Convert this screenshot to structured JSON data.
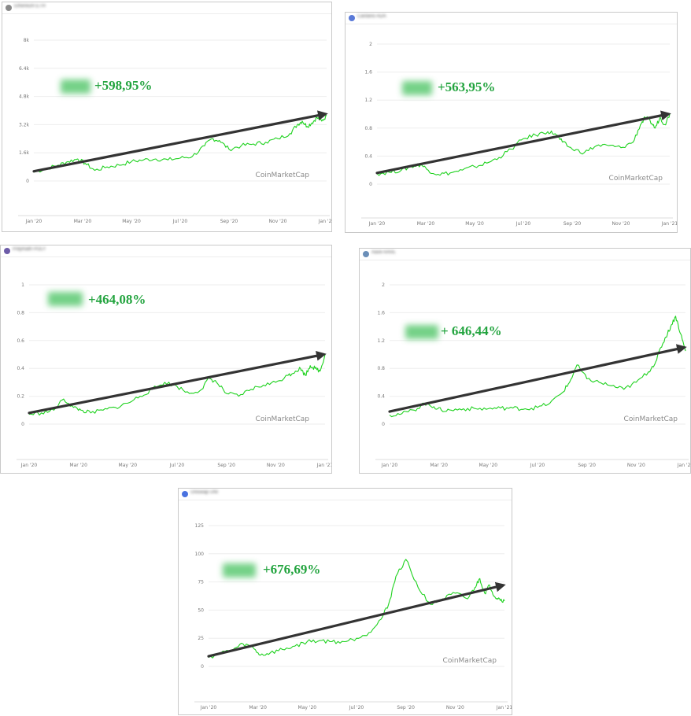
{
  "colors": {
    "line": "#1fd21f",
    "trend_arrow": "#333333",
    "percent_text": "#23a43f",
    "grid": "#eeeeee"
  },
  "panels": [
    {
      "coin_name": "Ethereum ETH",
      "percent_label": "+598,95%",
      "watermark": "CoinMarketCap"
    },
    {
      "coin_name": "Cardano ADA",
      "percent_label": "+563,95%",
      "watermark": "CoinMarketCap"
    },
    {
      "coin_name": "Polymath POLY",
      "percent_label": "+464,08%",
      "watermark": "CoinMarketCap"
    },
    {
      "coin_name": "Aave AAVE",
      "percent_label": "+ 646,44%",
      "watermark": "CoinMarketCap"
    },
    {
      "coin_name": "Uniswap UNI",
      "percent_label": "+676,69%",
      "watermark": "CoinMarketCap"
    }
  ],
  "chart_data": [
    {
      "type": "line",
      "yticks": [
        "0",
        "1.6k",
        "3.2k",
        "4.8k",
        "6.4k",
        "8k"
      ],
      "ylim": [
        0,
        8000
      ],
      "xticks": [
        "Jan '20",
        "Mar '20",
        "May '20",
        "Jul '20",
        "Sep '20",
        "Nov '20",
        "Jan '21"
      ],
      "xlim": [
        0,
        12
      ],
      "x": [
        0,
        0.5,
        1,
        1.4,
        1.8,
        2.1,
        2.5,
        3,
        3.5,
        4,
        4.5,
        5,
        5.5,
        6,
        6.5,
        7,
        7.3,
        7.6,
        8,
        8.5,
        9,
        9.5,
        10,
        10.5,
        10.8,
        11,
        11.2,
        11.4,
        11.6,
        11.8,
        12
      ],
      "series": [
        {
          "values": [
            500,
            700,
            900,
            1100,
            1250,
            1000,
            600,
            800,
            900,
            1100,
            1200,
            1250,
            1200,
            1300,
            1400,
            2000,
            2400,
            2300,
            1800,
            2000,
            2100,
            2200,
            2400,
            2700,
            3200,
            3400,
            3100,
            3300,
            3600,
            3400,
            3700
          ]
        }
      ],
      "trend": {
        "from": [
          0,
          550
        ],
        "to": [
          12,
          3800
        ]
      }
    },
    {
      "type": "line",
      "yticks": [
        "0",
        "0.4",
        "0.8",
        "1.2",
        "1.6",
        "2"
      ],
      "ylim": [
        0,
        2
      ],
      "xticks": [
        "Jan '20",
        "Mar '20",
        "May '20",
        "Jul '20",
        "Sep '20",
        "Nov '20",
        "Jan '21"
      ],
      "xlim": [
        0,
        12
      ],
      "x": [
        0,
        0.5,
        1,
        1.4,
        1.8,
        2.1,
        2.5,
        3,
        3.5,
        4,
        4.5,
        5,
        5.5,
        6,
        6.5,
        7,
        7.3,
        7.6,
        8,
        8.5,
        9,
        9.5,
        10,
        10.5,
        10.8,
        11,
        11.2,
        11.4,
        11.6,
        11.8,
        12
      ],
      "series": [
        {
          "values": [
            0.15,
            0.17,
            0.2,
            0.25,
            0.28,
            0.2,
            0.14,
            0.16,
            0.2,
            0.25,
            0.3,
            0.38,
            0.5,
            0.65,
            0.7,
            0.75,
            0.72,
            0.6,
            0.5,
            0.45,
            0.55,
            0.55,
            0.52,
            0.6,
            0.85,
            0.95,
            0.9,
            0.8,
            0.95,
            0.85,
            1.0
          ]
        }
      ],
      "trend": {
        "from": [
          0,
          0.16
        ],
        "to": [
          12,
          1.0
        ]
      }
    },
    {
      "type": "line",
      "yticks": [
        "0",
        "0.2",
        "0.4",
        "0.6",
        "0.8",
        "1"
      ],
      "ylim": [
        0,
        1
      ],
      "xticks": [
        "Jan '20",
        "Mar '20",
        "May '20",
        "Jul '20",
        "Sep '20",
        "Nov '20",
        "Jan '21"
      ],
      "xlim": [
        0,
        12
      ],
      "x": [
        0,
        0.5,
        1,
        1.4,
        1.8,
        2.1,
        2.5,
        3,
        3.5,
        4,
        4.5,
        5,
        5.5,
        6,
        6.5,
        7,
        7.3,
        7.6,
        8,
        8.5,
        9,
        9.5,
        10,
        10.5,
        10.8,
        11,
        11.2,
        11.4,
        11.6,
        11.8,
        12
      ],
      "series": [
        {
          "values": [
            0.07,
            0.08,
            0.1,
            0.18,
            0.12,
            0.1,
            0.08,
            0.1,
            0.12,
            0.15,
            0.2,
            0.25,
            0.3,
            0.27,
            0.22,
            0.25,
            0.33,
            0.3,
            0.22,
            0.2,
            0.25,
            0.28,
            0.3,
            0.35,
            0.38,
            0.4,
            0.35,
            0.42,
            0.4,
            0.38,
            0.5
          ]
        }
      ],
      "trend": {
        "from": [
          0,
          0.08
        ],
        "to": [
          12,
          0.5
        ]
      }
    },
    {
      "type": "line",
      "yticks": [
        "0",
        "0.4",
        "0.8",
        "1.2",
        "1.6",
        "2"
      ],
      "ylim": [
        0,
        2
      ],
      "xticks": [
        "Jan '20",
        "Mar '20",
        "May '20",
        "Jul '20",
        "Sep '20",
        "Nov '20",
        "Jan '21"
      ],
      "xlim": [
        0,
        12
      ],
      "x": [
        0,
        0.5,
        1,
        1.4,
        1.8,
        2.1,
        2.5,
        3,
        3.5,
        4,
        4.5,
        5,
        5.5,
        6,
        6.5,
        7,
        7.3,
        7.6,
        8,
        8.5,
        9,
        9.5,
        10,
        10.5,
        10.8,
        11,
        11.2,
        11.4,
        11.6,
        11.8,
        12
      ],
      "series": [
        {
          "values": [
            0.13,
            0.15,
            0.2,
            0.3,
            0.25,
            0.2,
            0.2,
            0.22,
            0.22,
            0.22,
            0.23,
            0.23,
            0.22,
            0.24,
            0.3,
            0.45,
            0.6,
            0.85,
            0.65,
            0.6,
            0.55,
            0.5,
            0.6,
            0.75,
            0.9,
            1.1,
            1.25,
            1.4,
            1.55,
            1.3,
            1.05
          ]
        }
      ],
      "trend": {
        "from": [
          0,
          0.18
        ],
        "to": [
          12,
          1.1
        ]
      }
    },
    {
      "type": "line",
      "yticks": [
        "0",
        "25",
        "50",
        "75",
        "100",
        "125"
      ],
      "ylim": [
        0,
        125
      ],
      "xticks": [
        "Jan '20",
        "Mar '20",
        "May '20",
        "Jul '20",
        "Sep '20",
        "Nov '20",
        "Jan '21"
      ],
      "xlim": [
        0,
        12
      ],
      "x": [
        0,
        0.5,
        1,
        1.4,
        1.8,
        2.1,
        2.5,
        3,
        3.5,
        4,
        4.5,
        5,
        5.5,
        6,
        6.5,
        7,
        7.3,
        7.6,
        8,
        8.5,
        9,
        9.5,
        10,
        10.5,
        10.8,
        11,
        11.2,
        11.4,
        11.6,
        11.8,
        12
      ],
      "series": [
        {
          "values": [
            8,
            12,
            15,
            20,
            17,
            10,
            12,
            15,
            18,
            22,
            23,
            22,
            22,
            25,
            30,
            42,
            55,
            80,
            95,
            70,
            55,
            60,
            65,
            60,
            70,
            78,
            65,
            72,
            62,
            60,
            58
          ]
        }
      ],
      "trend": {
        "from": [
          0,
          9
        ],
        "to": [
          12,
          72
        ]
      }
    }
  ]
}
